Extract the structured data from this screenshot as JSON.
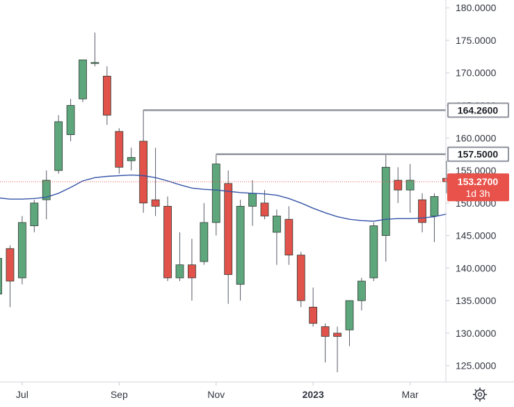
{
  "chart_data": {
    "type": "candlestick",
    "timeframe": "weekly",
    "y_axis": {
      "ticks": [
        180,
        175,
        170,
        165,
        160,
        155,
        150,
        145,
        140,
        135,
        130,
        125
      ],
      "tick_labels": [
        "180.0000",
        "175.0000",
        "170.0000",
        "165.0000",
        "160.0000",
        "155.0000",
        "150.0000",
        "145.0000",
        "140.0000",
        "135.0000",
        "130.0000",
        "125.0000"
      ],
      "ylim": [
        122.5,
        181.2
      ],
      "position": "right"
    },
    "x_axis": {
      "labels": [
        {
          "label": "Jul",
          "at_index": 2
        },
        {
          "label": "Sep",
          "at_index": 10
        },
        {
          "label": "Nov",
          "at_index": 18
        },
        {
          "label": "2023",
          "at_index": 26
        },
        {
          "label": "Mar",
          "at_index": 34
        }
      ]
    },
    "candles": [
      {
        "o": 136.0,
        "h": 142.5,
        "l": 133.0,
        "c": 141.5
      },
      {
        "o": 143.0,
        "h": 143.5,
        "l": 134.0,
        "c": 138.0
      },
      {
        "o": 138.5,
        "h": 148.0,
        "l": 137.5,
        "c": 147.0
      },
      {
        "o": 146.5,
        "h": 150.5,
        "l": 145.5,
        "c": 150.0
      },
      {
        "o": 150.5,
        "h": 155.0,
        "l": 147.5,
        "c": 153.5
      },
      {
        "o": 155.0,
        "h": 163.5,
        "l": 154.5,
        "c": 162.5
      },
      {
        "o": 160.5,
        "h": 166.0,
        "l": 159.5,
        "c": 165.0
      },
      {
        "o": 166.0,
        "h": 172.0,
        "l": 165.5,
        "c": 172.0
      },
      {
        "o": 171.5,
        "h": 176.2,
        "l": 171.0,
        "c": 171.6
      },
      {
        "o": 169.5,
        "h": 171.0,
        "l": 162.0,
        "c": 163.5
      },
      {
        "o": 161.0,
        "h": 161.5,
        "l": 154.5,
        "c": 155.5
      },
      {
        "o": 156.5,
        "h": 158.5,
        "l": 155.0,
        "c": 157.0
      },
      {
        "o": 159.5,
        "h": 164.3,
        "l": 148.5,
        "c": 150.0
      },
      {
        "o": 150.5,
        "h": 158.5,
        "l": 148.0,
        "c": 149.5
      },
      {
        "o": 149.5,
        "h": 151.0,
        "l": 138.0,
        "c": 138.5
      },
      {
        "o": 138.5,
        "h": 145.5,
        "l": 138.0,
        "c": 140.5
      },
      {
        "o": 140.5,
        "h": 144.5,
        "l": 135.0,
        "c": 138.5
      },
      {
        "o": 141.0,
        "h": 150.0,
        "l": 140.5,
        "c": 147.0
      },
      {
        "o": 147.0,
        "h": 157.5,
        "l": 145.0,
        "c": 156.0
      },
      {
        "o": 153.0,
        "h": 155.0,
        "l": 134.5,
        "c": 139.0
      },
      {
        "o": 137.5,
        "h": 150.5,
        "l": 135.0,
        "c": 149.5
      },
      {
        "o": 149.5,
        "h": 153.5,
        "l": 146.5,
        "c": 151.5
      },
      {
        "o": 150.0,
        "h": 152.0,
        "l": 147.5,
        "c": 148.0
      },
      {
        "o": 145.5,
        "h": 149.0,
        "l": 140.5,
        "c": 148.0
      },
      {
        "o": 147.5,
        "h": 149.5,
        "l": 140.5,
        "c": 142.0
      },
      {
        "o": 142.0,
        "h": 142.5,
        "l": 134.0,
        "c": 135.0
      },
      {
        "o": 134.0,
        "h": 137.0,
        "l": 131.0,
        "c": 131.5
      },
      {
        "o": 131.0,
        "h": 131.5,
        "l": 125.5,
        "c": 129.5
      },
      {
        "o": 130.0,
        "h": 131.0,
        "l": 124.0,
        "c": 129.5
      },
      {
        "o": 130.5,
        "h": 135.0,
        "l": 128.0,
        "c": 135.0
      },
      {
        "o": 135.0,
        "h": 138.5,
        "l": 133.5,
        "c": 138.0
      },
      {
        "o": 138.5,
        "h": 147.0,
        "l": 138.0,
        "c": 146.5
      },
      {
        "o": 145.0,
        "h": 157.5,
        "l": 141.0,
        "c": 155.5
      },
      {
        "o": 153.5,
        "h": 155.5,
        "l": 150.0,
        "c": 152.0
      },
      {
        "o": 152.0,
        "h": 156.0,
        "l": 148.5,
        "c": 153.5
      },
      {
        "o": 150.5,
        "h": 151.5,
        "l": 145.5,
        "c": 147.0
      },
      {
        "o": 148.0,
        "h": 151.5,
        "l": 144.0,
        "c": 151.0
      },
      {
        "o": 153.8,
        "h": 156.5,
        "l": 151.5,
        "c": 153.27
      }
    ],
    "moving_average": [
      150.8,
      150.6,
      150.6,
      150.7,
      150.9,
      151.5,
      152.4,
      153.4,
      153.9,
      154.1,
      154.2,
      154.3,
      154.2,
      153.9,
      153.4,
      152.8,
      152.3,
      152.1,
      152.0,
      151.8,
      151.6,
      151.5,
      151.4,
      151.2,
      150.7,
      150.0,
      149.2,
      148.5,
      147.9,
      147.5,
      147.3,
      147.2,
      147.5,
      147.6,
      147.6,
      147.7,
      147.9,
      148.3
    ],
    "levels": [
      {
        "value": 164.26,
        "label": "164.2600",
        "start_index": 12
      },
      {
        "value": 157.5,
        "label": "157.5000",
        "start_index": 18
      }
    ],
    "current_price": {
      "value": 153.27,
      "label": "153.2700",
      "countdown": "1d 3h"
    },
    "colors": {
      "up": "#5ea67c",
      "down": "#e0524a",
      "wick": "#555a66",
      "ma_line": "#3554a8",
      "level_line": "#8f939c",
      "level_label_bg": "#8f939c",
      "price_label_bg": "#e8524b",
      "price_dotted": "#e8524b",
      "axis_text": "#323540"
    }
  }
}
